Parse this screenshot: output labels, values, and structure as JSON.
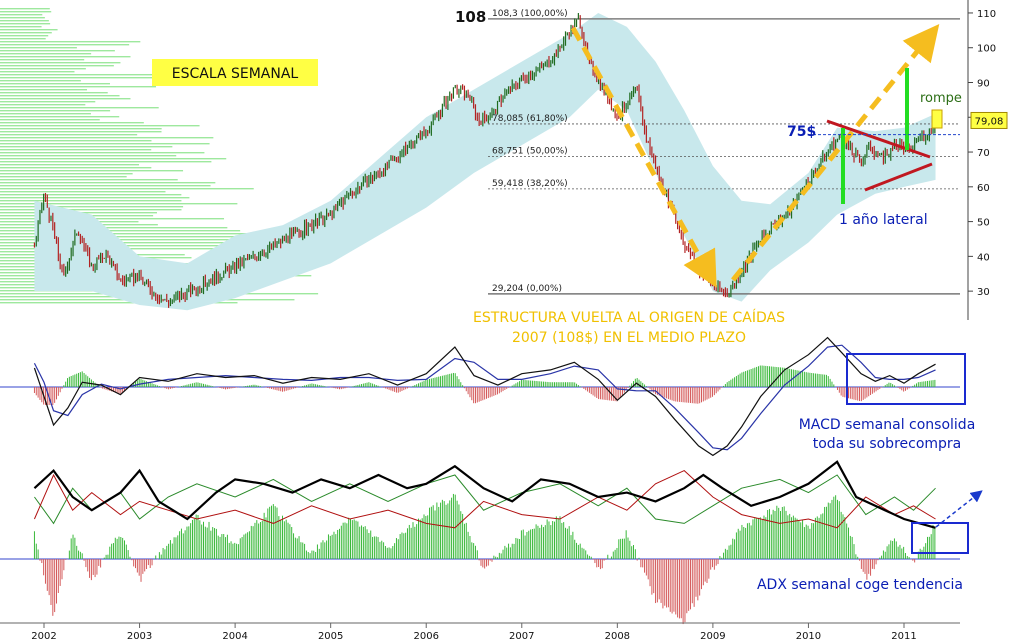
{
  "chart_data": {
    "type": "line",
    "title": "",
    "header_label": "ESCALA SEMANAL",
    "y_axis": {
      "ticks": [
        110,
        100,
        90,
        80,
        70,
        60,
        50,
        40,
        30
      ],
      "ylim": [
        24,
        112
      ],
      "last_price_label": "79,08",
      "last_price": 79.08
    },
    "x_axis": {
      "labels": [
        "2002",
        "2003",
        "2004",
        "2005",
        "2006",
        "2007",
        "2008",
        "2009",
        "2010",
        "2011"
      ],
      "range": [
        2001.9,
        2011.5
      ]
    },
    "price": {
      "name": "",
      "points": [
        [
          2001.9,
          43
        ],
        [
          2002.0,
          58
        ],
        [
          2002.1,
          47
        ],
        [
          2002.2,
          34
        ],
        [
          2002.35,
          48
        ],
        [
          2002.5,
          37
        ],
        [
          2002.65,
          41
        ],
        [
          2002.8,
          33
        ],
        [
          2003.0,
          34
        ],
        [
          2003.1,
          31
        ],
        [
          2003.2,
          28
        ],
        [
          2003.3,
          27
        ],
        [
          2003.45,
          29
        ],
        [
          2003.6,
          31
        ],
        [
          2003.8,
          34
        ],
        [
          2004.0,
          37
        ],
        [
          2004.2,
          40
        ],
        [
          2004.4,
          43
        ],
        [
          2004.6,
          46
        ],
        [
          2004.8,
          49
        ],
        [
          2005.0,
          52
        ],
        [
          2005.2,
          58
        ],
        [
          2005.4,
          62
        ],
        [
          2005.6,
          66
        ],
        [
          2005.75,
          70
        ],
        [
          2005.9,
          74
        ],
        [
          2006.0,
          76
        ],
        [
          2006.15,
          82
        ],
        [
          2006.3,
          88
        ],
        [
          2006.45,
          86
        ],
        [
          2006.55,
          79
        ],
        [
          2006.7,
          81
        ],
        [
          2006.8,
          86
        ],
        [
          2007.0,
          91
        ],
        [
          2007.2,
          94
        ],
        [
          2007.35,
          98
        ],
        [
          2007.5,
          105
        ],
        [
          2007.6,
          108.3
        ],
        [
          2007.7,
          96
        ],
        [
          2007.8,
          91
        ],
        [
          2007.9,
          86
        ],
        [
          2008.0,
          80
        ],
        [
          2008.1,
          84
        ],
        [
          2008.2,
          88
        ],
        [
          2008.3,
          74
        ],
        [
          2008.4,
          66
        ],
        [
          2008.55,
          55
        ],
        [
          2008.7,
          44
        ],
        [
          2008.85,
          36
        ],
        [
          2009.0,
          32
        ],
        [
          2009.1,
          30
        ],
        [
          2009.15,
          29.2
        ],
        [
          2009.3,
          36
        ],
        [
          2009.45,
          43
        ],
        [
          2009.6,
          48
        ],
        [
          2009.8,
          53
        ],
        [
          2009.95,
          60
        ],
        [
          2010.1,
          66
        ],
        [
          2010.25,
          72
        ],
        [
          2010.35,
          75
        ],
        [
          2010.45,
          70
        ],
        [
          2010.55,
          67
        ],
        [
          2010.65,
          72
        ],
        [
          2010.75,
          68
        ],
        [
          2010.85,
          70
        ],
        [
          2010.95,
          72
        ],
        [
          2011.05,
          70
        ],
        [
          2011.15,
          74
        ],
        [
          2011.25,
          75
        ],
        [
          2011.33,
          79.08
        ]
      ]
    },
    "band": {
      "upper": [
        [
          2001.9,
          56
        ],
        [
          2002.5,
          52
        ],
        [
          2003.0,
          40
        ],
        [
          2003.5,
          38
        ],
        [
          2004.0,
          46
        ],
        [
          2004.5,
          49
        ],
        [
          2005.0,
          56
        ],
        [
          2005.5,
          68
        ],
        [
          2006.0,
          80
        ],
        [
          2006.5,
          88
        ],
        [
          2007.0,
          96
        ],
        [
          2007.5,
          104
        ],
        [
          2007.8,
          110
        ],
        [
          2008.1,
          106
        ],
        [
          2008.4,
          96
        ],
        [
          2008.7,
          82
        ],
        [
          2009.0,
          66
        ],
        [
          2009.3,
          56
        ],
        [
          2009.6,
          55
        ],
        [
          2010.0,
          64
        ],
        [
          2010.3,
          77
        ],
        [
          2010.7,
          76
        ],
        [
          2011.0,
          77
        ],
        [
          2011.33,
          81
        ]
      ],
      "lower": [
        [
          2001.9,
          30
        ],
        [
          2002.5,
          30
        ],
        [
          2003.0,
          26
        ],
        [
          2003.5,
          24.5
        ],
        [
          2004.0,
          28
        ],
        [
          2004.5,
          33
        ],
        [
          2005.0,
          38
        ],
        [
          2005.5,
          46
        ],
        [
          2006.0,
          54
        ],
        [
          2006.5,
          64
        ],
        [
          2007.0,
          72
        ],
        [
          2007.5,
          80
        ],
        [
          2007.8,
          88
        ],
        [
          2008.1,
          82
        ],
        [
          2008.4,
          64
        ],
        [
          2008.7,
          46
        ],
        [
          2009.0,
          30
        ],
        [
          2009.3,
          27
        ],
        [
          2009.6,
          36
        ],
        [
          2010.0,
          44
        ],
        [
          2010.3,
          52
        ],
        [
          2010.7,
          58
        ],
        [
          2011.0,
          60
        ],
        [
          2011.33,
          62
        ]
      ]
    },
    "fibonacci": [
      {
        "label": "108,3 (100,00%)",
        "value": 108.3
      },
      {
        "label": "78,085 (61,80%)",
        "value": 78.085
      },
      {
        "label": "68,751 (50,00%)",
        "value": 68.751
      },
      {
        "label": "59,418 (38,20%)",
        "value": 59.418
      },
      {
        "label": "29,204 (0,00%)",
        "value": 29.204
      }
    ],
    "annotations": {
      "top_level": "108",
      "level_75": "75$",
      "lateral_year": "1 año lateral",
      "rompe": "rompe",
      "structure_line1": "ESTRUCTURA VUELTA AL ORIGEN DE CAÍDAS",
      "structure_line2": "2007 (108$) EN EL MEDIO PLAZO",
      "macd_line1": "MACD semanal consolida",
      "macd_line2": "toda su sobrecompra",
      "adx_text": "ADX semanal coge tendencia"
    },
    "macd": {
      "line": [
        [
          2001.9,
          20
        ],
        [
          2002.0,
          -10
        ],
        [
          2002.1,
          -40
        ],
        [
          2002.25,
          -22
        ],
        [
          2002.4,
          5
        ],
        [
          2002.6,
          2
        ],
        [
          2002.8,
          -8
        ],
        [
          2003.0,
          10
        ],
        [
          2003.3,
          6
        ],
        [
          2003.6,
          14
        ],
        [
          2003.9,
          10
        ],
        [
          2004.2,
          12
        ],
        [
          2004.5,
          4
        ],
        [
          2004.8,
          10
        ],
        [
          2005.1,
          8
        ],
        [
          2005.4,
          14
        ],
        [
          2005.7,
          2
        ],
        [
          2006.0,
          14
        ],
        [
          2006.3,
          42
        ],
        [
          2006.5,
          12
        ],
        [
          2006.75,
          2
        ],
        [
          2007.0,
          14
        ],
        [
          2007.3,
          18
        ],
        [
          2007.55,
          26
        ],
        [
          2007.8,
          8
        ],
        [
          2008.0,
          -14
        ],
        [
          2008.2,
          4
        ],
        [
          2008.4,
          -10
        ],
        [
          2008.6,
          -34
        ],
        [
          2008.85,
          -62
        ],
        [
          2009.0,
          -72
        ],
        [
          2009.15,
          -62
        ],
        [
          2009.3,
          -42
        ],
        [
          2009.5,
          -10
        ],
        [
          2009.75,
          18
        ],
        [
          2010.0,
          34
        ],
        [
          2010.2,
          52
        ],
        [
          2010.35,
          36
        ],
        [
          2010.55,
          14
        ],
        [
          2010.7,
          6
        ],
        [
          2010.85,
          12
        ],
        [
          2011.0,
          4
        ],
        [
          2011.15,
          14
        ],
        [
          2011.33,
          24
        ]
      ],
      "signal": [
        [
          2001.9,
          25
        ],
        [
          2002.0,
          5
        ],
        [
          2002.1,
          -25
        ],
        [
          2002.25,
          -30
        ],
        [
          2002.4,
          -8
        ],
        [
          2002.6,
          3
        ],
        [
          2002.8,
          -2
        ],
        [
          2003.0,
          3
        ],
        [
          2003.3,
          8
        ],
        [
          2003.6,
          10
        ],
        [
          2003.9,
          12
        ],
        [
          2004.2,
          10
        ],
        [
          2004.5,
          8
        ],
        [
          2004.8,
          7
        ],
        [
          2005.1,
          10
        ],
        [
          2005.4,
          10
        ],
        [
          2005.7,
          7
        ],
        [
          2006.0,
          8
        ],
        [
          2006.3,
          30
        ],
        [
          2006.5,
          26
        ],
        [
          2006.75,
          8
        ],
        [
          2007.0,
          8
        ],
        [
          2007.3,
          14
        ],
        [
          2007.55,
          22
        ],
        [
          2007.8,
          18
        ],
        [
          2008.0,
          -2
        ],
        [
          2008.2,
          -4
        ],
        [
          2008.4,
          -4
        ],
        [
          2008.6,
          -22
        ],
        [
          2008.85,
          -48
        ],
        [
          2009.0,
          -64
        ],
        [
          2009.15,
          -66
        ],
        [
          2009.3,
          -54
        ],
        [
          2009.5,
          -28
        ],
        [
          2009.75,
          2
        ],
        [
          2010.0,
          22
        ],
        [
          2010.2,
          42
        ],
        [
          2010.35,
          44
        ],
        [
          2010.55,
          26
        ],
        [
          2010.7,
          10
        ],
        [
          2010.85,
          8
        ],
        [
          2011.0,
          8
        ],
        [
          2011.15,
          10
        ],
        [
          2011.33,
          18
        ]
      ]
    },
    "adx": {
      "adx_line": [
        [
          2001.9,
          24
        ],
        [
          2002.1,
          32
        ],
        [
          2002.3,
          20
        ],
        [
          2002.5,
          14
        ],
        [
          2002.8,
          22
        ],
        [
          2003.0,
          32
        ],
        [
          2003.2,
          18
        ],
        [
          2003.5,
          10
        ],
        [
          2003.8,
          22
        ],
        [
          2004.0,
          28
        ],
        [
          2004.3,
          26
        ],
        [
          2004.6,
          22
        ],
        [
          2004.9,
          28
        ],
        [
          2005.2,
          24
        ],
        [
          2005.5,
          30
        ],
        [
          2005.8,
          24
        ],
        [
          2006.0,
          26
        ],
        [
          2006.3,
          34
        ],
        [
          2006.6,
          24
        ],
        [
          2006.9,
          18
        ],
        [
          2007.2,
          28
        ],
        [
          2007.5,
          26
        ],
        [
          2007.8,
          20
        ],
        [
          2008.1,
          22
        ],
        [
          2008.4,
          18
        ],
        [
          2008.7,
          24
        ],
        [
          2008.9,
          30
        ],
        [
          2009.1,
          24
        ],
        [
          2009.4,
          16
        ],
        [
          2009.7,
          20
        ],
        [
          2010.0,
          26
        ],
        [
          2010.3,
          36
        ],
        [
          2010.5,
          20
        ],
        [
          2010.8,
          14
        ],
        [
          2011.0,
          10
        ],
        [
          2011.33,
          6
        ]
      ],
      "plus_di": [
        [
          2001.9,
          20
        ],
        [
          2002.1,
          8
        ],
        [
          2002.3,
          24
        ],
        [
          2002.5,
          14
        ],
        [
          2002.8,
          22
        ],
        [
          2003.0,
          10
        ],
        [
          2003.3,
          20
        ],
        [
          2003.6,
          26
        ],
        [
          2004.0,
          20
        ],
        [
          2004.4,
          28
        ],
        [
          2004.8,
          18
        ],
        [
          2005.2,
          26
        ],
        [
          2005.6,
          18
        ],
        [
          2006.0,
          26
        ],
        [
          2006.3,
          30
        ],
        [
          2006.6,
          14
        ],
        [
          2007.0,
          22
        ],
        [
          2007.4,
          26
        ],
        [
          2007.8,
          16
        ],
        [
          2008.1,
          24
        ],
        [
          2008.4,
          10
        ],
        [
          2008.7,
          8
        ],
        [
          2009.0,
          16
        ],
        [
          2009.3,
          24
        ],
        [
          2009.7,
          28
        ],
        [
          2010.0,
          22
        ],
        [
          2010.3,
          30
        ],
        [
          2010.6,
          12
        ],
        [
          2010.9,
          20
        ],
        [
          2011.1,
          14
        ],
        [
          2011.33,
          24
        ]
      ],
      "minus_di": [
        [
          2001.9,
          10
        ],
        [
          2002.1,
          30
        ],
        [
          2002.3,
          14
        ],
        [
          2002.5,
          22
        ],
        [
          2002.8,
          12
        ],
        [
          2003.0,
          18
        ],
        [
          2003.3,
          14
        ],
        [
          2003.6,
          10
        ],
        [
          2004.0,
          14
        ],
        [
          2004.4,
          8
        ],
        [
          2004.8,
          16
        ],
        [
          2005.2,
          10
        ],
        [
          2005.6,
          14
        ],
        [
          2006.0,
          8
        ],
        [
          2006.3,
          6
        ],
        [
          2006.6,
          18
        ],
        [
          2007.0,
          12
        ],
        [
          2007.4,
          10
        ],
        [
          2007.8,
          20
        ],
        [
          2008.1,
          14
        ],
        [
          2008.4,
          26
        ],
        [
          2008.7,
          32
        ],
        [
          2009.0,
          20
        ],
        [
          2009.3,
          12
        ],
        [
          2009.7,
          8
        ],
        [
          2010.0,
          10
        ],
        [
          2010.3,
          6
        ],
        [
          2010.6,
          20
        ],
        [
          2010.9,
          12
        ],
        [
          2011.1,
          16
        ],
        [
          2011.33,
          10
        ]
      ]
    },
    "grid": false,
    "legend": "none",
    "colors": {
      "band": "#c8e8ec",
      "fib": "#555555",
      "arrow": "#f5bd1f",
      "trend_red": "#c01820",
      "lateral_green": "#22dd22",
      "volume_green": "#9ee89e",
      "hist_red": "#d45a5a",
      "annotation_blue": "#0a1eb4",
      "structure_yellow": "#f0c000",
      "label_yellow": "#ffff44",
      "adx_black": "#000000",
      "plus_di": "#2a8a2a",
      "minus_di": "#b01010"
    }
  }
}
